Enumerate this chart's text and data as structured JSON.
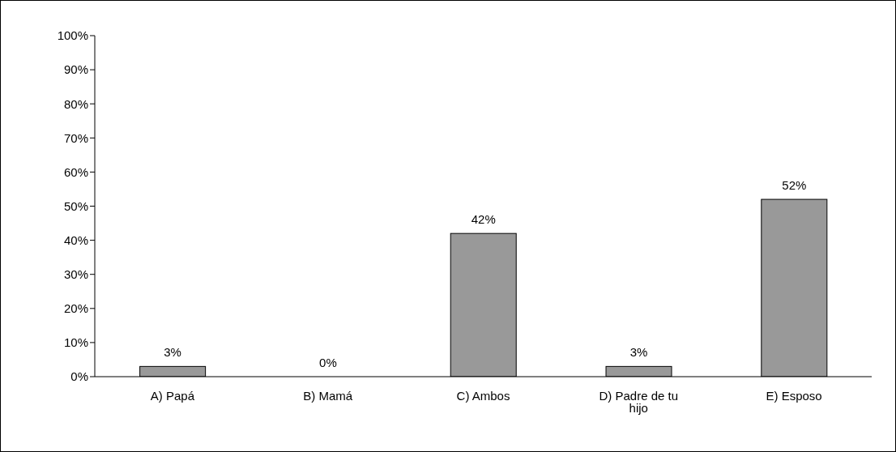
{
  "chart_data": {
    "type": "bar",
    "categories": [
      "A) Papá",
      "B) Mamá",
      "C) Ambos",
      "D) Padre de tu hijo",
      "E) Esposo"
    ],
    "values": [
      3,
      0,
      42,
      3,
      52
    ],
    "color": "#999999",
    "value_labels": [
      "3%",
      "0%",
      "42%",
      "3%",
      "52%"
    ],
    "ylim": [
      0,
      100
    ],
    "yticks": [
      {
        "value": 0,
        "label": "0%"
      },
      {
        "value": 10,
        "label": "10%"
      },
      {
        "value": 20,
        "label": "20%"
      },
      {
        "value": 30,
        "label": "30%"
      },
      {
        "value": 40,
        "label": "40%"
      },
      {
        "value": 50,
        "label": "50%"
      },
      {
        "value": 60,
        "label": "60%"
      },
      {
        "value": 70,
        "label": "70%"
      },
      {
        "value": 80,
        "label": "80%"
      },
      {
        "value": 90,
        "label": "90%"
      },
      {
        "value": 100,
        "label": "100%"
      }
    ],
    "grid": false,
    "legend": false
  }
}
